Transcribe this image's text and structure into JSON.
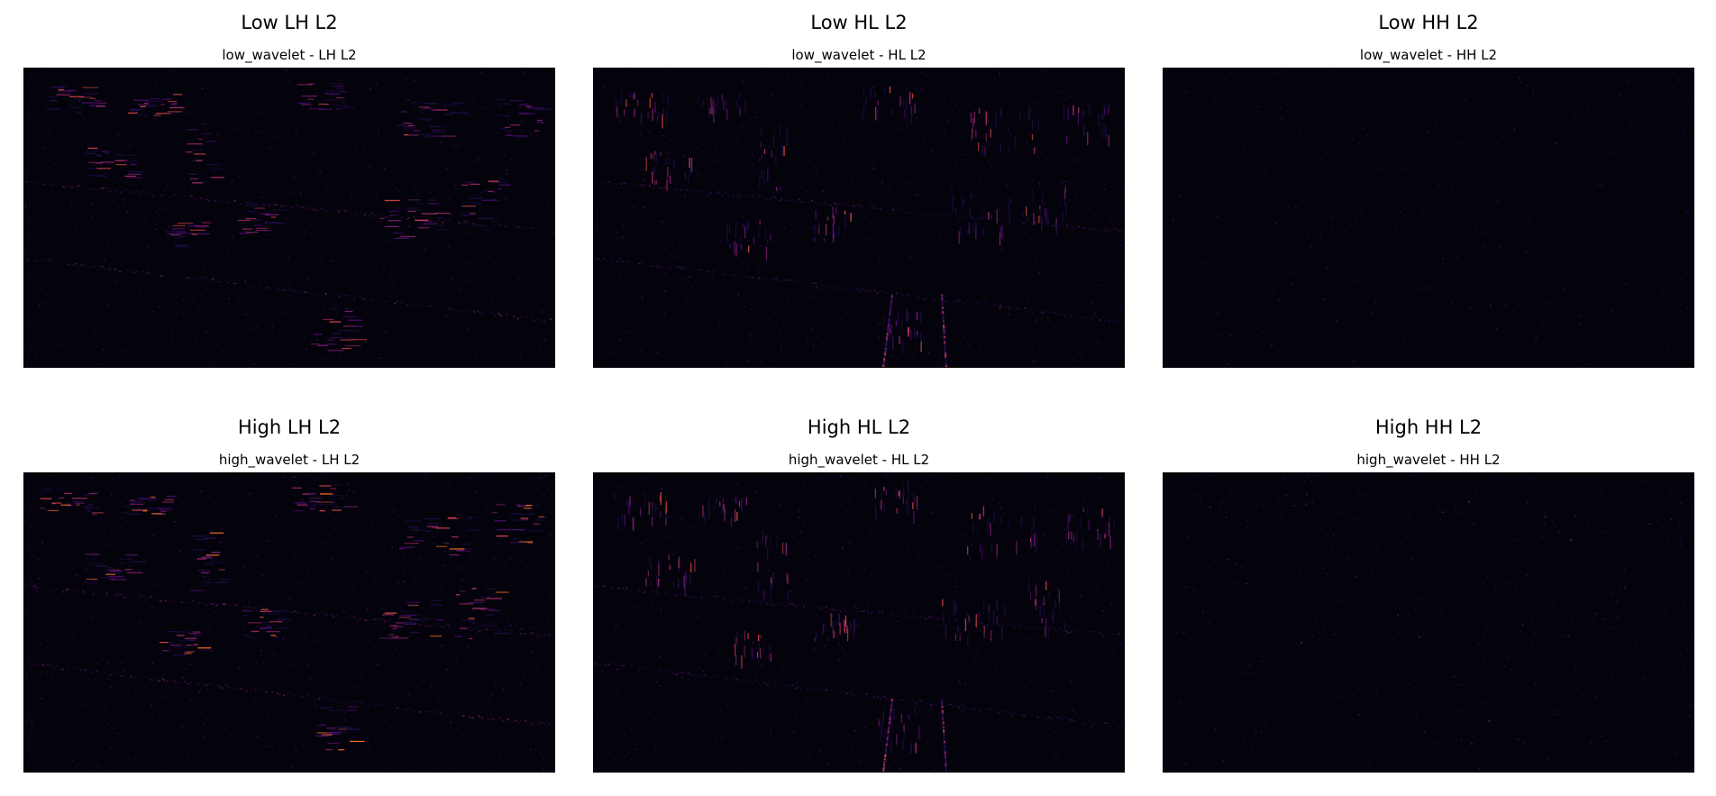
{
  "colormap": {
    "name": "magma",
    "background": "#04030c",
    "colors": [
      "#1b0c41",
      "#4a0c6b",
      "#781c6d",
      "#a52c60",
      "#cf4446",
      "#ed6925",
      "#fb9b06"
    ]
  },
  "panels": [
    {
      "id": "low-lh",
      "title": "Low LH L2",
      "subtitle": "low_wavelet - LH L2",
      "dominant_orientation": "horizontal",
      "intensity": 0.75
    },
    {
      "id": "low-hl",
      "title": "Low HL L2",
      "subtitle": "low_wavelet - HL L2",
      "dominant_orientation": "vertical",
      "intensity": 0.65
    },
    {
      "id": "low-hh",
      "title": "Low HH L2",
      "subtitle": "low_wavelet - HH L2",
      "dominant_orientation": "diagonal",
      "intensity": 0.2
    },
    {
      "id": "high-lh",
      "title": "High LH L2",
      "subtitle": "high_wavelet - LH L2",
      "dominant_orientation": "horizontal",
      "intensity": 0.8
    },
    {
      "id": "high-hl",
      "title": "High HL L2",
      "subtitle": "high_wavelet - HL L2",
      "dominant_orientation": "vertical",
      "intensity": 0.7
    },
    {
      "id": "high-hh",
      "title": "High HH L2",
      "subtitle": "high_wavelet - HH L2",
      "dominant_orientation": "diagonal",
      "intensity": 0.45
    }
  ]
}
